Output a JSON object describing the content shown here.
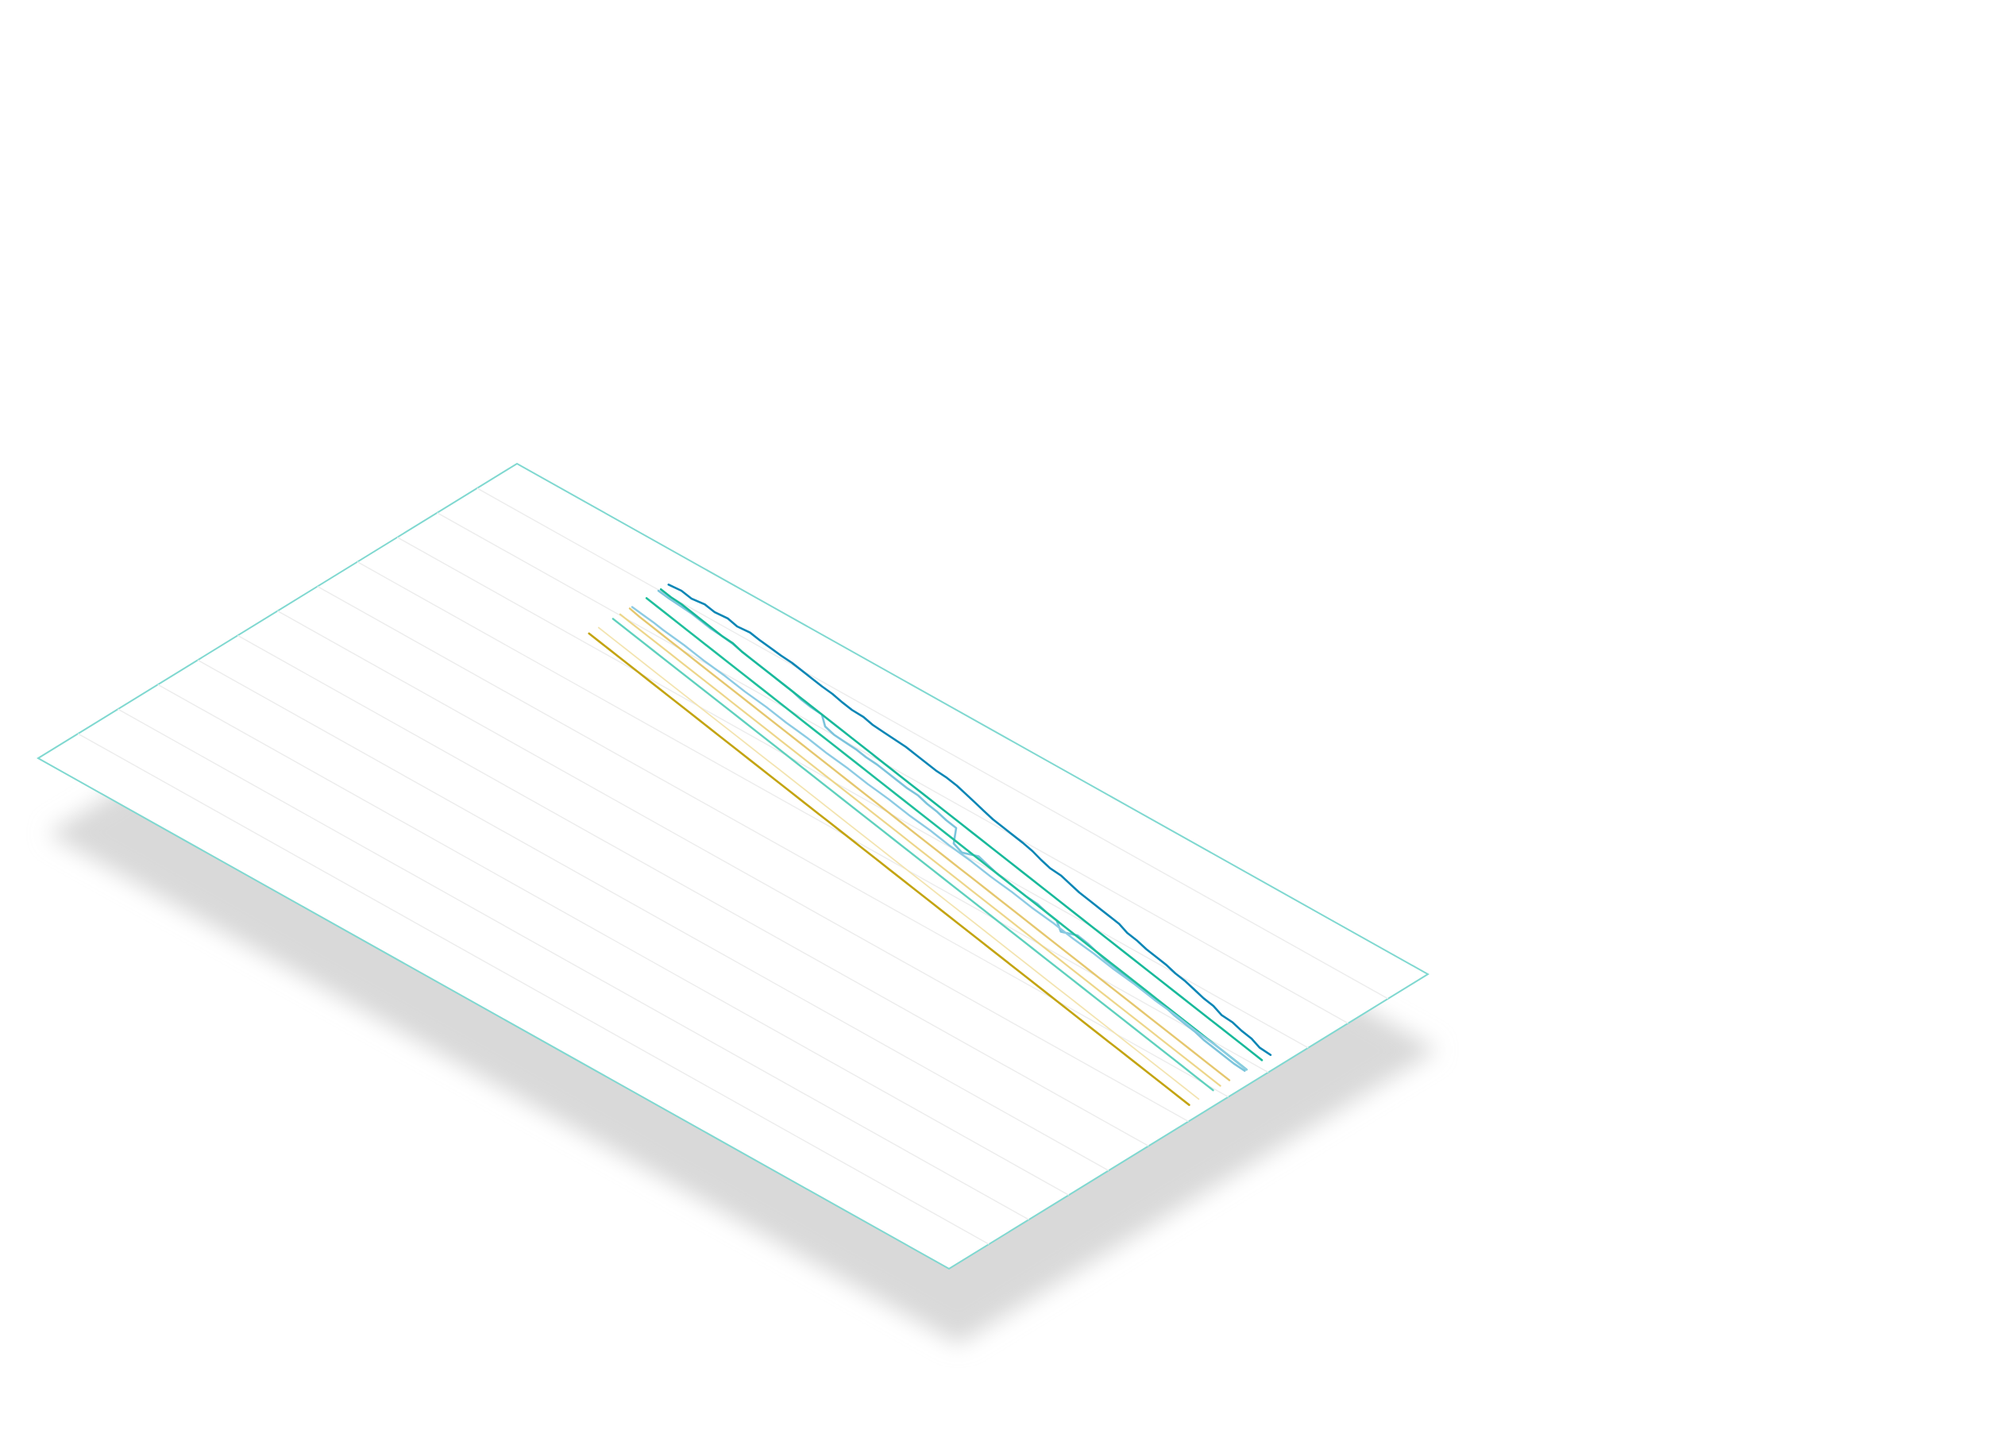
{
  "colors": {
    "background": "#ffffff",
    "panel": "#ffffff",
    "panel_border": "#7fd8d0",
    "grid": "#ececec",
    "shadow": "#d9d9d9"
  },
  "chart_data": {
    "type": "line",
    "title": "",
    "xlabel": "",
    "ylabel": "",
    "projection": "isometric panel",
    "grid": true,
    "legend": "none",
    "xlim": [
      0,
      60
    ],
    "ylim": [
      0,
      10
    ],
    "series": [
      {
        "color": "#0b86b5",
        "width": 2.6,
        "values": [
          9.36,
          9.38,
          9.34,
          9.37,
          9.33,
          9.35,
          9.3,
          9.32,
          9.28,
          9.25,
          9.22,
          9.2,
          9.16,
          9.12,
          9.08,
          9.05,
          9.0,
          8.96,
          8.95,
          8.9,
          8.88,
          8.86,
          8.84,
          8.8,
          8.76,
          8.72,
          8.7,
          8.66,
          8.6,
          8.54,
          8.48,
          8.42,
          8.38,
          8.34,
          8.3,
          8.25,
          8.18,
          8.12,
          8.1,
          8.04,
          7.98,
          7.94,
          7.9,
          7.86,
          7.82,
          7.74,
          7.7,
          7.64,
          7.6,
          7.56,
          7.5,
          7.46,
          7.4,
          7.34,
          7.3,
          7.22,
          7.2,
          7.14,
          7.1,
          7.02,
          7.0
        ]
      },
      {
        "color": "#7cc4dc",
        "width": 2.6,
        "values": [
          9.15,
          9.12,
          9.1,
          9.08,
          9.04,
          9.0,
          8.98,
          8.95,
          8.9,
          8.86,
          8.82,
          8.78,
          8.74,
          8.7,
          8.64,
          8.6,
          8.58,
          8.4,
          8.34,
          8.32,
          8.3,
          8.26,
          8.24,
          8.2,
          8.16,
          8.12,
          8.1,
          8.04,
          8.0,
          7.94,
          7.9,
          7.6,
          7.52,
          7.62,
          7.56,
          7.5,
          7.46,
          7.42,
          7.38,
          7.36,
          7.3,
          7.26,
          7.1,
          7.2,
          7.16,
          7.1,
          7.04,
          7.0,
          6.96,
          6.92,
          6.88,
          6.84,
          6.8,
          6.74,
          6.7,
          6.66,
          6.6,
          6.56,
          6.52,
          6.48,
          6.46
        ]
      },
      {
        "color": "#18b99a",
        "width": 2.6,
        "values": [
          9.2,
          9.16,
          9.14,
          9.1,
          9.06,
          9.02,
          8.98,
          8.96,
          8.9,
          8.86,
          8.82,
          8.78,
          8.74,
          8.7,
          8.66,
          8.62,
          8.58,
          8.54,
          8.5,
          8.46,
          8.42,
          8.38,
          8.34,
          8.3,
          8.26,
          8.22,
          8.18,
          8.14,
          8.1,
          8.06,
          8.02,
          7.98,
          7.94,
          7.9,
          7.86,
          7.82,
          7.78,
          7.74,
          7.7,
          7.66,
          7.62,
          7.58,
          7.54,
          7.5,
          7.46,
          7.42,
          7.38,
          7.34,
          7.3,
          7.26,
          7.22,
          7.18,
          7.14,
          7.1,
          7.06,
          7.02,
          6.98,
          6.94,
          6.9,
          6.86,
          6.82
        ]
      },
      {
        "color": "#1fbf9c",
        "width": 2.6,
        "values": [
          8.9,
          8.86,
          8.82,
          8.78,
          8.74,
          8.7,
          8.66,
          8.62,
          8.58,
          8.54,
          8.5,
          8.46,
          8.42,
          8.38,
          8.34,
          8.3,
          8.26,
          8.22,
          8.18,
          8.14,
          8.1,
          8.06,
          8.02,
          7.98,
          7.94,
          7.9,
          7.86,
          7.82,
          7.78,
          7.74,
          7.7,
          7.66,
          7.62,
          7.58,
          7.54,
          7.5,
          7.46,
          7.42,
          7.38,
          7.34,
          7.3,
          7.26,
          7.22,
          7.18,
          7.14,
          7.1,
          7.06,
          7.02,
          6.98,
          6.94,
          6.9,
          6.86,
          6.82,
          6.78,
          6.74,
          6.7,
          6.66,
          6.62,
          6.58,
          6.54,
          6.5
        ]
      },
      {
        "color": "#8ccbe3",
        "width": 2.4,
        "values": [
          8.6,
          8.57,
          8.54,
          8.5,
          8.47,
          8.44,
          8.4,
          8.36,
          8.33,
          8.3,
          8.26,
          8.22,
          8.19,
          8.16,
          8.12,
          8.08,
          8.05,
          8.02,
          7.98,
          7.94,
          7.91,
          7.88,
          7.84,
          7.8,
          7.77,
          7.74,
          7.7,
          7.66,
          7.63,
          7.6,
          7.56,
          7.52,
          7.49,
          7.46,
          7.42,
          7.38,
          7.35,
          7.32,
          7.28,
          7.24,
          7.21,
          7.18,
          7.14,
          7.1,
          7.07,
          7.04,
          7.0,
          6.96,
          6.93,
          6.9,
          6.86,
          6.82,
          6.79,
          6.76,
          6.72,
          6.68,
          6.65,
          6.62,
          6.58,
          6.54,
          6.5
        ]
      },
      {
        "color": "#e5c76e",
        "width": 2.4,
        "values": [
          8.55,
          8.5,
          8.46,
          8.42,
          8.38,
          8.34,
          8.3,
          8.26,
          8.22,
          8.18,
          8.14,
          8.1,
          8.06,
          8.02,
          7.98,
          7.94,
          7.9,
          7.86,
          7.82,
          7.78,
          7.74,
          7.7,
          7.66,
          7.62,
          7.58,
          7.54,
          7.5,
          7.46,
          7.42,
          7.38,
          7.34,
          7.3,
          7.26,
          7.22,
          7.18,
          7.14,
          7.1,
          7.06,
          7.02,
          6.98,
          6.94,
          6.9,
          6.86,
          6.82,
          6.78,
          6.74,
          6.7,
          6.66,
          6.62,
          6.58,
          6.54,
          6.5,
          6.46,
          6.42,
          6.38,
          6.34,
          6.3,
          6.26,
          6.22,
          6.18,
          6.14
        ]
      },
      {
        "color": "#edd68a",
        "width": 2.2,
        "values": [
          8.35,
          8.31,
          8.27,
          8.23,
          8.19,
          8.15,
          8.11,
          8.07,
          8.03,
          7.99,
          7.95,
          7.91,
          7.87,
          7.83,
          7.79,
          7.75,
          7.71,
          7.67,
          7.63,
          7.59,
          7.55,
          7.51,
          7.47,
          7.43,
          7.39,
          7.35,
          7.31,
          7.27,
          7.23,
          7.19,
          7.15,
          7.11,
          7.07,
          7.03,
          6.99,
          6.95,
          6.91,
          6.87,
          6.83,
          6.79,
          6.75,
          6.71,
          6.67,
          6.63,
          6.59,
          6.55,
          6.51,
          6.47,
          6.43,
          6.39,
          6.35,
          6.31,
          6.27,
          6.23,
          6.19,
          6.15,
          6.11,
          6.07,
          6.03,
          5.99,
          5.95
        ]
      },
      {
        "color": "#5fd1bd",
        "width": 2.4,
        "values": [
          8.2,
          8.16,
          8.12,
          8.08,
          8.04,
          8.0,
          7.96,
          7.92,
          7.88,
          7.84,
          7.8,
          7.76,
          7.72,
          7.68,
          7.64,
          7.6,
          7.56,
          7.52,
          7.48,
          7.44,
          7.4,
          7.36,
          7.32,
          7.28,
          7.24,
          7.2,
          7.16,
          7.12,
          7.08,
          7.04,
          7.0,
          6.96,
          6.92,
          6.88,
          6.84,
          6.8,
          6.76,
          6.72,
          6.68,
          6.64,
          6.6,
          6.56,
          6.52,
          6.48,
          6.44,
          6.4,
          6.36,
          6.32,
          6.28,
          6.24,
          6.2,
          6.16,
          6.12,
          6.08,
          6.04,
          6.0,
          5.96,
          5.92,
          5.88,
          5.84,
          5.8
        ]
      },
      {
        "color": "#f3e4b0",
        "width": 1.8,
        "values": [
          7.9,
          7.86,
          7.82,
          7.78,
          7.74,
          7.7,
          7.66,
          7.62,
          7.58,
          7.54,
          7.5,
          7.46,
          7.42,
          7.38,
          7.34,
          7.3,
          7.26,
          7.22,
          7.18,
          7.14,
          7.1,
          7.06,
          7.02,
          6.98,
          6.94,
          6.9,
          6.86,
          6.82,
          6.78,
          6.74,
          6.7,
          6.66,
          6.62,
          6.58,
          6.54,
          6.5,
          6.46,
          6.42,
          6.38,
          6.34,
          6.3,
          6.26,
          6.22,
          6.18,
          6.14,
          6.1,
          6.06,
          6.02,
          5.98,
          5.94,
          5.9,
          5.86,
          5.82,
          5.78,
          5.74,
          5.7,
          5.66,
          5.62,
          5.58,
          5.54,
          5.5
        ]
      },
      {
        "color": "#c3a412",
        "width": 2.6,
        "values": [
          7.7,
          7.66,
          7.62,
          7.58,
          7.54,
          7.5,
          7.46,
          7.42,
          7.38,
          7.34,
          7.3,
          7.26,
          7.22,
          7.18,
          7.14,
          7.1,
          7.06,
          7.02,
          6.98,
          6.94,
          6.9,
          6.86,
          6.82,
          6.78,
          6.74,
          6.7,
          6.66,
          6.62,
          6.58,
          6.54,
          6.5,
          6.46,
          6.42,
          6.38,
          6.34,
          6.3,
          6.26,
          6.22,
          6.18,
          6.14,
          6.1,
          6.06,
          6.02,
          5.98,
          5.94,
          5.9,
          5.86,
          5.82,
          5.78,
          5.74,
          5.7,
          5.66,
          5.62,
          5.58,
          5.54,
          5.5,
          5.46,
          5.42,
          5.38,
          5.34,
          5.3
        ]
      }
    ]
  }
}
